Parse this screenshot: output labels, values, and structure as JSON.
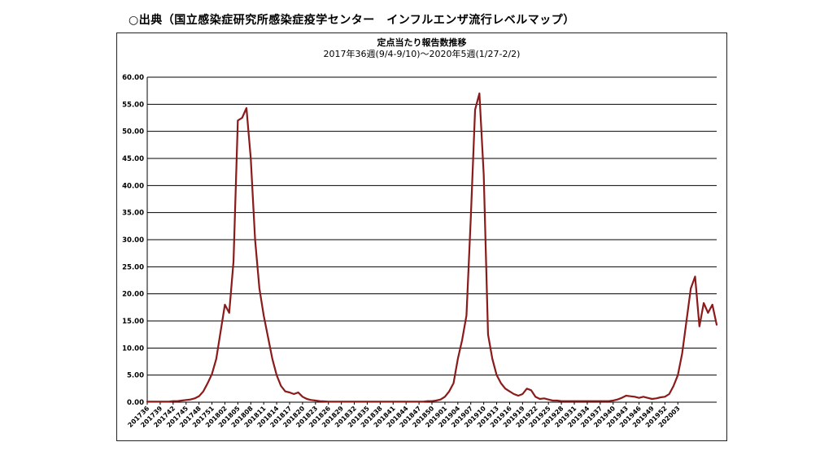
{
  "source_caption": "○出典（国立感染症研究所感染症疫学センター　インフルエンザ流行レベルマップ）",
  "colors": {
    "line": "#8b1a1a",
    "grid": "#000000",
    "frame": "#222222"
  },
  "chart_data": {
    "type": "line",
    "title": "定点当たり報告数推移",
    "subtitle": "2017年36週(9/4-9/10)～2020年5週(1/27-2/2)",
    "xlabel": "",
    "ylabel": "",
    "ylim": [
      0,
      60
    ],
    "yticks": [
      "0.00",
      "5.00",
      "10.00",
      "15.00",
      "20.00",
      "25.00",
      "30.00",
      "35.00",
      "40.00",
      "45.00",
      "50.00",
      "55.00",
      "60.00"
    ],
    "grid": true,
    "xtick_labels": [
      "201736",
      "201739",
      "201742",
      "201745",
      "201748",
      "201751",
      "201802",
      "201805",
      "201808",
      "201811",
      "201814",
      "201817",
      "201820",
      "201823",
      "201826",
      "201829",
      "201832",
      "201835",
      "201838",
      "201841",
      "201844",
      "201847",
      "201850",
      "201901",
      "201904",
      "201907",
      "201910",
      "201913",
      "201916",
      "201919",
      "201922",
      "201925",
      "201928",
      "201931",
      "201934",
      "201937",
      "201940",
      "201943",
      "201946",
      "201949",
      "201952",
      "202003"
    ],
    "series": [
      {
        "values": [
          0.1,
          0.1,
          0.1,
          0.1,
          0.1,
          0.1,
          0.2,
          0.2,
          0.3,
          0.4,
          0.5,
          0.7,
          1.1,
          2.0,
          3.5,
          5.2,
          8.0,
          13.0,
          18.0,
          16.5,
          26.0,
          52.0,
          52.5,
          54.3,
          45.0,
          30.0,
          21.0,
          16.0,
          12.0,
          8.0,
          5.0,
          3.0,
          2.0,
          1.8,
          1.5,
          1.8,
          1.0,
          0.6,
          0.4,
          0.3,
          0.2,
          0.15,
          0.1,
          0.1,
          0.1,
          0.1,
          0.1,
          0.1,
          0.1,
          0.1,
          0.1,
          0.1,
          0.1,
          0.1,
          0.1,
          0.1,
          0.1,
          0.1,
          0.1,
          0.1,
          0.1,
          0.1,
          0.1,
          0.1,
          0.1,
          0.2,
          0.2,
          0.3,
          0.5,
          1.0,
          2.0,
          3.5,
          8.0,
          11.5,
          16.0,
          34.0,
          54.0,
          57.0,
          42.0,
          12.5,
          8.0,
          5.0,
          3.5,
          2.5,
          2.0,
          1.5,
          1.2,
          1.5,
          2.5,
          2.2,
          1.0,
          0.6,
          0.7,
          0.5,
          0.3,
          0.3,
          0.2,
          0.2,
          0.2,
          0.2,
          0.2,
          0.2,
          0.2,
          0.2,
          0.2,
          0.2,
          0.2,
          0.2,
          0.3,
          0.5,
          0.8,
          1.2,
          1.1,
          1.0,
          0.8,
          1.0,
          0.8,
          0.6,
          0.7,
          0.9,
          1.0,
          1.5,
          3.0,
          5.0,
          9.0,
          15.0,
          21.0,
          23.2,
          14.0,
          18.3,
          16.5,
          18.0,
          14.3
        ]
      }
    ]
  }
}
